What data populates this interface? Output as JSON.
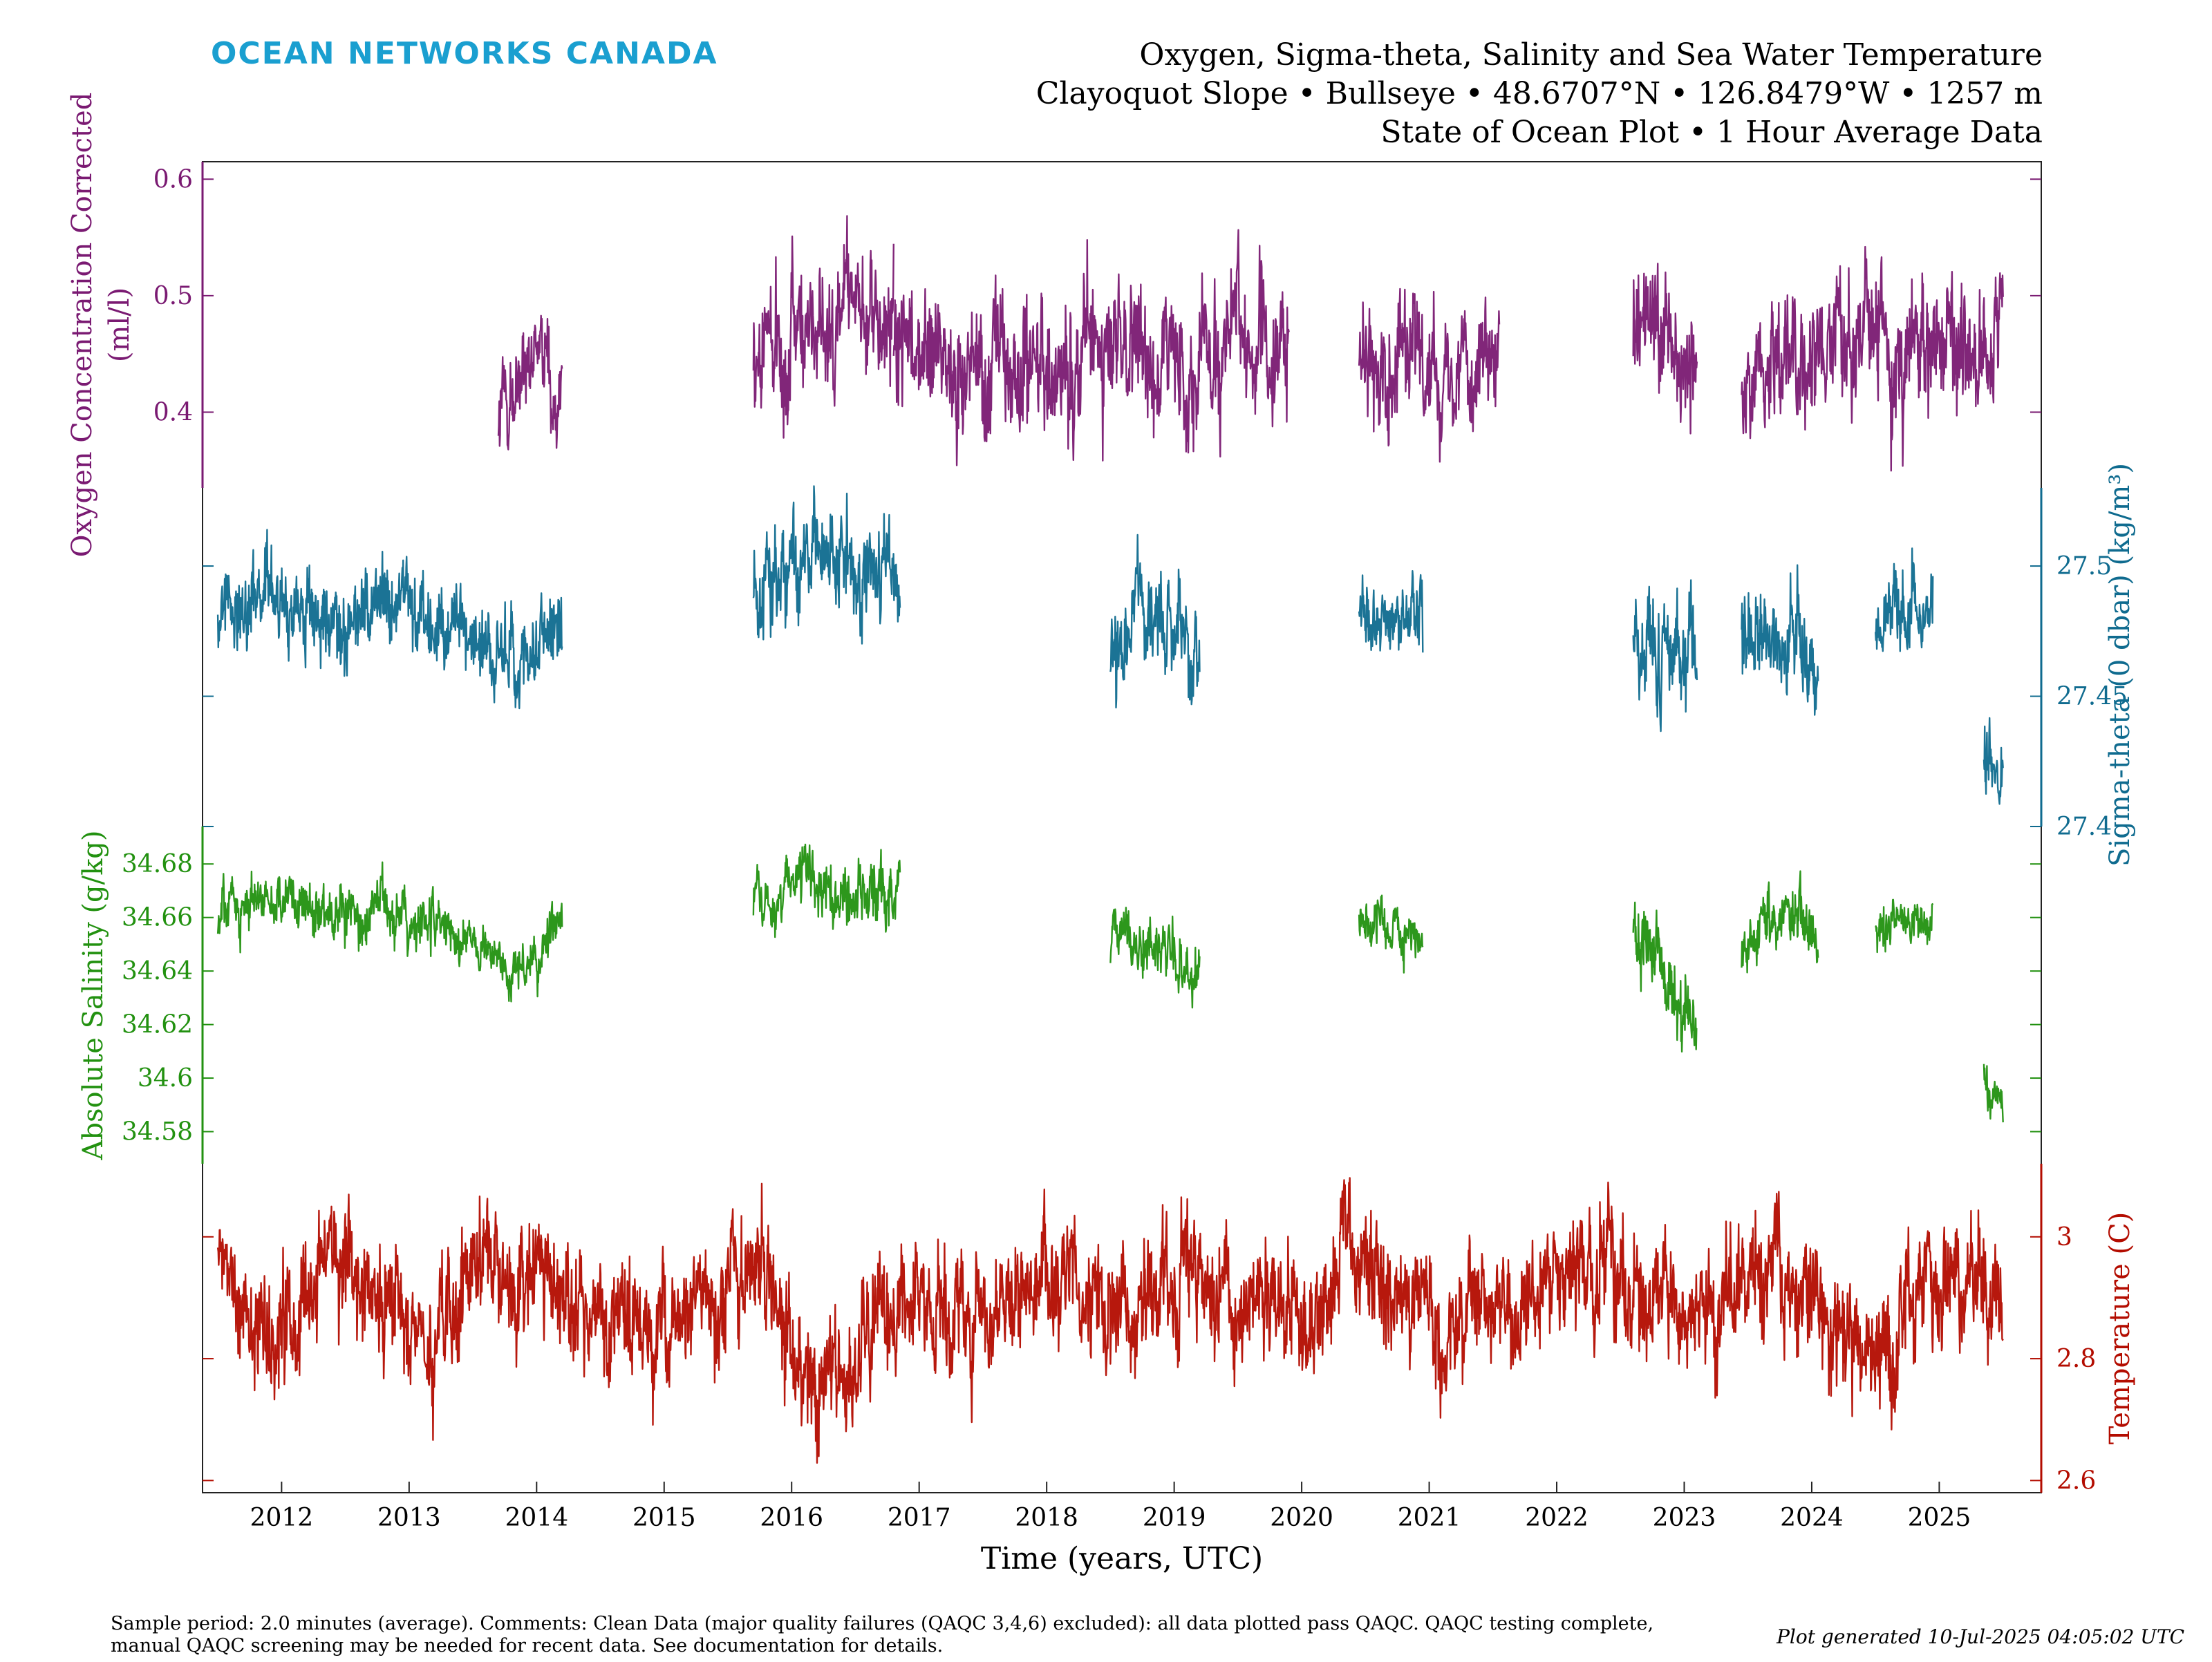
{
  "brand": {
    "name": "OCEAN NETWORKS CANADA",
    "color": "#1a9fd0"
  },
  "header": {
    "title": "Oxygen, Sigma-theta, Salinity and Sea Water Temperature",
    "location": "Clayoquot Slope • Bullseye • 48.6707°N • 126.8479°W • 1257 m",
    "subtitle": "State of Ocean Plot • 1 Hour Average Data"
  },
  "footer": {
    "comment_line1": "Sample period: 2.0 minutes (average). Comments: Clean Data (major quality failures (QAQC 3,4,6) excluded): all data plotted pass QAQC. QAQC testing complete,",
    "comment_line2": "manual QAQC screening may be needed for recent data. See documentation for details.",
    "generated": "Plot generated 10-Jul-2025 04:05:02 UTC"
  },
  "chart_data": {
    "type": "line",
    "xlabel": "Time (years, UTC)",
    "xlim": [
      2011.38,
      2025.8
    ],
    "x_ticks": [
      2012,
      2013,
      2014,
      2015,
      2016,
      2017,
      2018,
      2019,
      2020,
      2021,
      2022,
      2023,
      2024,
      2025
    ],
    "x_tick_labels": [
      "2012",
      "2013",
      "2014",
      "2015",
      "2016",
      "2017",
      "2018",
      "2019",
      "2020",
      "2021",
      "2022",
      "2023",
      "2024",
      "2025"
    ],
    "panels": [
      {
        "name": "Oxygen Concentration Corrected",
        "ylabel": [
          "Oxygen Concentration Corrected",
          "(ml/l)"
        ],
        "axis_side": "left",
        "color": "#7a1a72",
        "ylim": [
          0.335,
          0.615
        ],
        "ticks": [
          0.4,
          0.5,
          0.6
        ],
        "tick_labels": [
          "0.4",
          "0.5",
          "0.6"
        ],
        "segments": [
          {
            "start": 2013.7,
            "end": 2014.2,
            "mean": [
              0.39,
              0.42,
              0.44,
              0.43
            ],
            "noise": 0.025
          },
          {
            "start": 2015.7,
            "end": 2016.8,
            "mean": [
              0.45,
              0.46,
              0.47,
              0.49,
              0.48
            ],
            "noise": 0.035
          },
          {
            "start": 2016.8,
            "end": 2019.9,
            "mean": [
              0.46,
              0.45,
              0.44,
              0.44,
              0.45,
              0.45,
              0.44,
              0.45,
              0.46,
              0.44
            ],
            "noise": 0.035
          },
          {
            "start": 2020.45,
            "end": 2021.55,
            "mean": [
              0.45,
              0.45,
              0.46,
              0.44,
              0.45,
              0.44
            ],
            "noise": 0.03
          },
          {
            "start": 2022.6,
            "end": 2023.1,
            "mean": [
              0.46,
              0.47,
              0.46,
              0.45
            ],
            "noise": 0.035
          },
          {
            "start": 2023.45,
            "end": 2025.5,
            "mean": [
              0.42,
              0.46,
              0.45,
              0.47,
              0.46,
              0.47,
              0.46,
              0.46
            ],
            "noise": 0.035
          }
        ]
      },
      {
        "name": "Sigma-theta (0 dbar)",
        "ylabel": [
          "Sigma-theta (0 dbar) (kg/m³)"
        ],
        "axis_side": "right",
        "color": "#0f6b8f",
        "ylim": [
          27.4,
          27.53
        ],
        "ticks": [
          27.4,
          27.45,
          27.5
        ],
        "tick_labels": [
          "27.4",
          "27.45",
          "27.5"
        ],
        "segments": [
          {
            "start": 2011.5,
            "end": 2014.2,
            "mean": [
              27.48,
              27.49,
              27.485,
              27.48,
              27.485,
              27.48,
              27.47,
              27.46,
              27.48
            ],
            "noise": 0.01
          },
          {
            "start": 2015.7,
            "end": 2016.85,
            "mean": [
              27.49,
              27.5,
              27.51,
              27.5,
              27.49
            ],
            "noise": 0.012
          },
          {
            "start": 2018.5,
            "end": 2019.2,
            "mean": [
              27.47,
              27.475,
              27.47,
              27.46
            ],
            "noise": 0.012
          },
          {
            "start": 2020.45,
            "end": 2020.95,
            "mean": [
              27.48,
              27.475,
              27.48
            ],
            "noise": 0.01
          },
          {
            "start": 2022.6,
            "end": 2023.1,
            "mean": [
              27.47,
              27.475,
              27.46,
              27.45
            ],
            "noise": 0.013
          },
          {
            "start": 2023.45,
            "end": 2024.05,
            "mean": [
              27.47,
              27.48,
              27.475,
              27.465
            ],
            "noise": 0.012
          },
          {
            "start": 2024.5,
            "end": 2024.95,
            "mean": [
              27.475,
              27.48,
              27.485
            ],
            "noise": 0.01
          },
          {
            "start": 2025.35,
            "end": 2025.5,
            "mean": [
              27.43,
              27.415
            ],
            "noise": 0.01
          }
        ]
      },
      {
        "name": "Absolute Salinity",
        "ylabel": [
          "Absolute Salinity (g/kg)"
        ],
        "axis_side": "left",
        "color": "#229110",
        "ylim": [
          34.568,
          34.694
        ],
        "ticks": [
          34.58,
          34.6,
          34.62,
          34.64,
          34.66,
          34.68
        ],
        "tick_labels": [
          "34.58",
          "34.6",
          "34.62",
          "34.64",
          "34.66",
          "34.68"
        ],
        "segments": [
          {
            "start": 2011.5,
            "end": 2014.2,
            "mean": [
              34.66,
              34.668,
              34.665,
              34.662,
              34.663,
              34.66,
              34.65,
              34.64,
              34.66
            ],
            "noise": 0.006
          },
          {
            "start": 2015.7,
            "end": 2016.85,
            "mean": [
              34.665,
              34.67,
              34.668,
              34.665,
              34.67
            ],
            "noise": 0.007
          },
          {
            "start": 2018.5,
            "end": 2019.2,
            "mean": [
              34.652,
              34.65,
              34.645,
              34.635
            ],
            "noise": 0.007
          },
          {
            "start": 2020.45,
            "end": 2020.95,
            "mean": [
              34.66,
              34.655,
              34.652
            ],
            "noise": 0.006
          },
          {
            "start": 2022.6,
            "end": 2023.1,
            "mean": [
              34.652,
              34.648,
              34.63,
              34.62
            ],
            "noise": 0.009
          },
          {
            "start": 2023.45,
            "end": 2024.05,
            "mean": [
              34.648,
              34.655,
              34.66,
              34.648
            ],
            "noise": 0.007
          },
          {
            "start": 2024.5,
            "end": 2024.95,
            "mean": [
              34.655,
              34.658,
              34.657
            ],
            "noise": 0.005
          },
          {
            "start": 2025.35,
            "end": 2025.5,
            "mean": [
              34.6,
              34.585
            ],
            "noise": 0.005
          }
        ]
      },
      {
        "name": "Temperature",
        "ylabel": [
          "Temperature (C)"
        ],
        "axis_side": "right",
        "color": "#b30c00",
        "ylim": [
          2.58,
          3.12
        ],
        "ticks": [
          2.6,
          2.8,
          3.0
        ],
        "tick_labels": [
          "2.6",
          "2.8",
          "3"
        ],
        "segments": [
          {
            "start": 2011.5,
            "end": 2025.5,
            "mean": [
              3.0,
              2.82,
              2.85,
              2.95,
              2.9,
              2.85,
              2.9,
              2.95,
              2.95,
              2.88,
              2.9,
              2.82,
              2.9,
              2.88,
              2.95,
              2.8,
              2.75,
              2.85,
              2.9,
              2.88,
              2.85,
              2.93,
              2.92,
              2.9,
              2.9,
              2.95,
              2.85,
              2.92,
              2.88,
              2.95,
              2.95,
              2.88,
              2.85,
              2.9,
              2.92,
              2.95,
              2.95,
              2.88,
              2.92,
              2.88,
              2.95,
              2.9,
              2.82,
              2.78,
              2.92,
              2.95,
              2.93
            ],
            "noise": 0.06
          }
        ]
      }
    ]
  }
}
